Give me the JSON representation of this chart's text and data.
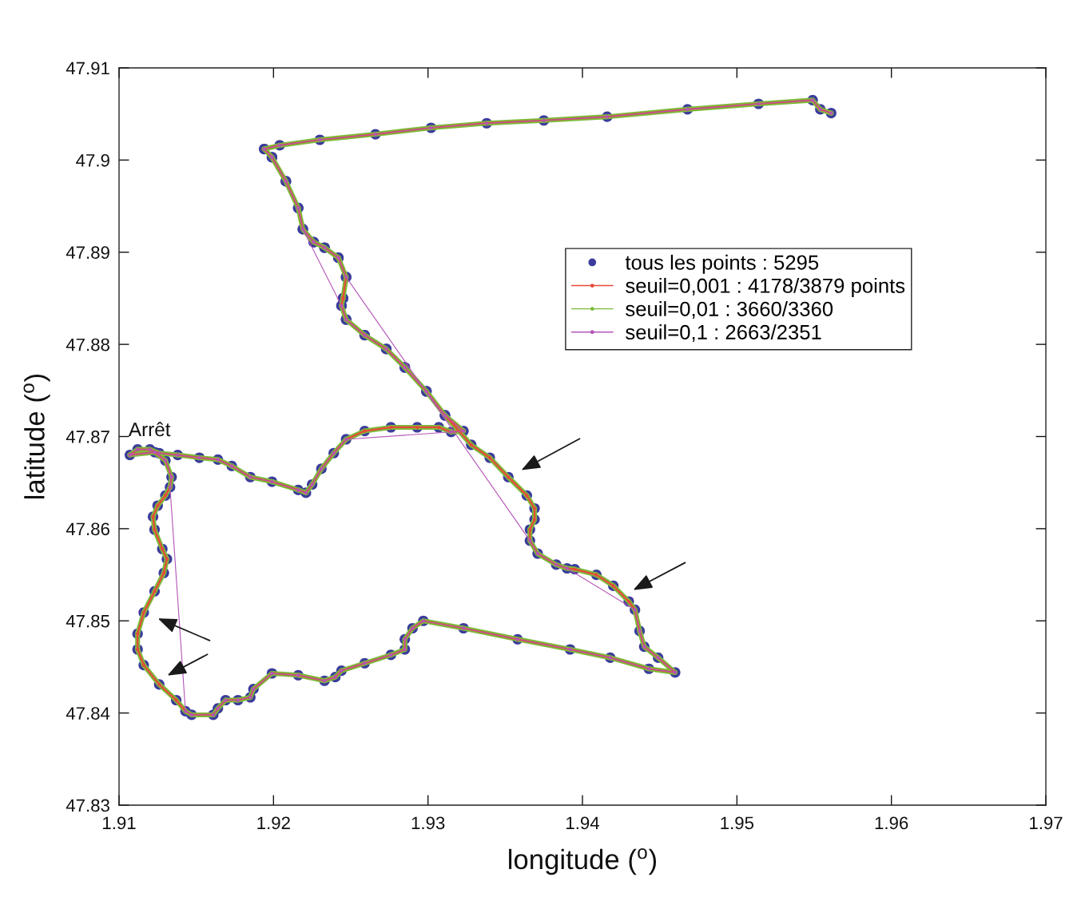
{
  "chart_data": {
    "type": "line",
    "xlabel": "longitude ($^{o}$)",
    "ylabel": "latitude ($^{o}$)",
    "xlim": [
      1.91,
      1.97
    ],
    "ylim": [
      47.83,
      47.91
    ],
    "xticks": [
      1.91,
      1.92,
      1.93,
      1.94,
      1.95,
      1.96,
      1.97
    ],
    "yticks": [
      47.83,
      47.84,
      47.85,
      47.86,
      47.87,
      47.88,
      47.89,
      47.9,
      47.91
    ],
    "marker": "circle",
    "line_style": "solid",
    "legend": "top right",
    "annotations": [
      {
        "text": "Arrêt",
        "x": 1.9109,
        "y": 47.8684
      }
    ],
    "x": [
      1.9561,
      1.9554,
      1.9549,
      1.9514,
      1.9468,
      1.9416,
      1.9375,
      1.9338,
      1.9302,
      1.9266,
      1.923,
      1.9204,
      1.9194,
      1.9199,
      1.9208,
      1.9216,
      1.9219,
      1.9226,
      1.9233,
      1.9242,
      1.9247,
      1.9245,
      1.9244,
      1.9247,
      1.9259,
      1.9273,
      1.9285,
      1.9299,
      1.9311,
      1.9323,
      1.9315,
      1.9307,
      1.9293,
      1.9276,
      1.9259,
      1.9247,
      1.9239,
      1.9231,
      1.9225,
      1.9221,
      1.9216,
      1.9199,
      1.9185,
      1.9173,
      1.9164,
      1.9152,
      1.9138,
      1.9126,
      1.912,
      1.9112,
      1.9107,
      1.9123,
      1.913,
      1.9134,
      1.9133,
      1.913,
      1.9125,
      1.9122,
      1.9123,
      1.9128,
      1.9131,
      1.9129,
      1.9123,
      1.9116,
      1.9112,
      1.9112,
      1.9116,
      1.9126,
      1.9137,
      1.9143,
      1.9147,
      1.9161,
      1.9164,
      1.9169,
      1.9177,
      1.9185,
      1.9187,
      1.9199,
      1.9216,
      1.9233,
      1.924,
      1.9244,
      1.9259,
      1.9276,
      1.9285,
      1.9285,
      1.929,
      1.9297,
      1.9323,
      1.9358,
      1.9392,
      1.9418,
      1.9443,
      1.946,
      1.9449,
      1.944,
      1.9437,
      1.9434,
      1.943,
      1.942,
      1.9409,
      1.9395,
      1.939,
      1.9383,
      1.9371,
      1.9366,
      1.9366,
      1.9369,
      1.9369,
      1.9364,
      1.9352,
      1.934,
      1.9328,
      1.9311,
      1.9299,
      1.9285,
      1.9273,
      1.9259,
      1.9247,
      1.9244,
      1.9245,
      1.9247,
      1.9242,
      1.9233,
      1.9226,
      1.9219,
      1.9216,
      1.9208,
      1.9199,
      1.9194
    ],
    "series": [
      {
        "name": "tous les points : 5295",
        "type": "scatter",
        "color": "#3c3c9c",
        "values": [
          47.9051,
          47.9055,
          47.9065,
          47.9061,
          47.9055,
          47.9047,
          47.9043,
          47.904,
          47.9035,
          47.9028,
          47.9022,
          47.9016,
          47.9012,
          47.9003,
          47.8977,
          47.8948,
          47.8925,
          47.8911,
          47.8905,
          47.8894,
          47.8873,
          47.885,
          47.8842,
          47.8827,
          47.881,
          47.8795,
          47.8775,
          47.8749,
          47.8723,
          47.8706,
          47.8705,
          47.871,
          47.871,
          47.871,
          47.8706,
          47.8697,
          47.8682,
          47.8665,
          47.8648,
          47.8639,
          47.8642,
          47.8651,
          47.8656,
          47.8668,
          47.8675,
          47.8677,
          47.868,
          47.8682,
          47.8686,
          47.8686,
          47.868,
          47.8683,
          47.8674,
          47.8656,
          47.8645,
          47.8636,
          47.8625,
          47.8613,
          47.8599,
          47.8578,
          47.8567,
          47.8552,
          47.8532,
          47.8509,
          47.8486,
          47.8469,
          47.8452,
          47.8431,
          47.8414,
          47.8402,
          47.8398,
          47.8398,
          47.8405,
          47.8414,
          47.8414,
          47.8417,
          47.8426,
          47.8443,
          47.8441,
          47.8435,
          47.8439,
          47.8446,
          47.8454,
          47.8463,
          47.8469,
          47.848,
          47.8492,
          47.85,
          47.8492,
          47.848,
          47.8469,
          47.846,
          47.8448,
          47.8444,
          47.846,
          47.8472,
          47.8489,
          47.8512,
          47.8521,
          47.8538,
          47.855,
          47.8556,
          47.8557,
          47.8561,
          47.8573,
          47.8587,
          47.8599,
          47.861,
          47.8622,
          47.8636,
          47.8656,
          47.8677,
          47.8691,
          47.8723,
          47.8749,
          47.8775,
          47.8795,
          47.881,
          47.8827,
          47.8842,
          47.885,
          47.8873,
          47.8894,
          47.8905,
          47.8911,
          47.8925,
          47.8948,
          47.8977,
          47.9003,
          47.9012
        ]
      },
      {
        "name": "seuil=0,001 : 4178/3879 points",
        "color": "#e84a3a",
        "values": [
          47.9051,
          47.9055,
          47.9065,
          47.9061,
          47.9055,
          47.9047,
          47.9043,
          47.904,
          47.9035,
          47.9028,
          47.9022,
          47.9016,
          47.9012,
          47.9003,
          47.8977,
          47.8948,
          47.8925,
          47.8911,
          47.8905,
          47.8894,
          47.8873,
          47.885,
          47.8842,
          47.8827,
          47.881,
          47.8795,
          47.8775,
          47.8749,
          47.8723,
          47.8706,
          47.8705,
          47.871,
          47.871,
          47.871,
          47.8706,
          47.8697,
          47.8682,
          47.8665,
          47.8648,
          47.8639,
          47.8642,
          47.8651,
          47.8656,
          47.8668,
          47.8675,
          47.8677,
          47.868,
          47.8682,
          47.8686,
          47.8686,
          47.868,
          47.8683,
          47.8674,
          47.8656,
          47.8645,
          47.8636,
          47.8625,
          47.8613,
          47.8599,
          47.8578,
          47.8567,
          47.8552,
          47.8532,
          47.8509,
          47.8486,
          47.8469,
          47.8452,
          47.8431,
          47.8414,
          47.8402,
          47.8398,
          47.8398,
          47.8405,
          47.8414,
          47.8414,
          47.8417,
          47.8426,
          47.8443,
          47.8441,
          47.8435,
          47.8439,
          47.8446,
          47.8454,
          47.8463,
          47.8469,
          47.848,
          47.8492,
          47.85,
          47.8492,
          47.848,
          47.8469,
          47.846,
          47.8448,
          47.8444,
          47.846,
          47.8472,
          47.8489,
          47.8512,
          47.8521,
          47.8538,
          47.855,
          47.8556,
          47.8557,
          47.8561,
          47.8573,
          47.8587,
          47.8599,
          47.861,
          47.8622,
          47.8636,
          47.8656,
          47.8677,
          47.8691,
          47.8723,
          47.8749,
          47.8775,
          47.8795,
          47.881,
          47.8827,
          47.8842,
          47.885,
          47.8873,
          47.8894,
          47.8905,
          47.8911,
          47.8925,
          47.8948,
          47.8977,
          47.9003,
          47.9012
        ]
      },
      {
        "name": "seuil=0,01 : 3660/3360",
        "color": "#7cba3a",
        "values": [
          47.9051,
          47.9055,
          47.9065,
          47.9061,
          47.9055,
          47.9047,
          47.9043,
          47.904,
          47.9035,
          47.9028,
          47.9022,
          47.9016,
          47.9012,
          47.9003,
          47.8977,
          47.8948,
          47.8925,
          47.8911,
          47.8905,
          47.8894,
          47.8873,
          47.885,
          47.8842,
          47.8827,
          47.881,
          47.8795,
          47.8775,
          47.8749,
          47.8723,
          47.8706,
          47.8705,
          47.871,
          47.871,
          47.871,
          47.8706,
          47.8697,
          47.8682,
          47.8665,
          47.8648,
          47.8639,
          47.8642,
          47.8651,
          47.8656,
          47.8668,
          47.8675,
          47.8677,
          47.868,
          47.8682,
          47.8686,
          47.8686,
          47.868,
          47.8683,
          47.8674,
          47.8656,
          47.8645,
          47.8636,
          47.8625,
          47.8613,
          47.8599,
          47.8578,
          47.8567,
          47.8552,
          47.8532,
          47.8509,
          47.8486,
          47.8469,
          47.8452,
          47.8431,
          47.8414,
          47.8402,
          47.8398,
          47.8398,
          47.8405,
          47.8414,
          47.8414,
          47.8417,
          47.8426,
          47.8443,
          47.8441,
          47.8435,
          47.8439,
          47.8446,
          47.8454,
          47.8463,
          47.8469,
          47.848,
          47.8492,
          47.85,
          47.8492,
          47.848,
          47.8469,
          47.846,
          47.8448,
          47.8444,
          47.846,
          47.8472,
          47.8489,
          47.8512,
          47.8521,
          47.8538,
          47.855,
          47.8556,
          47.8557,
          47.8561,
          47.8573,
          47.8587,
          47.8599,
          47.861,
          47.8622,
          47.8636,
          47.8656,
          47.8677,
          47.8691,
          47.8723,
          47.8749,
          47.8775,
          47.8795,
          47.881,
          47.8827,
          47.8842,
          47.885,
          47.8873,
          47.8894,
          47.8905,
          47.8911,
          47.8925,
          47.8948,
          47.8977,
          47.9003,
          47.9012
        ]
      },
      {
        "name": "seuil=0,1 : 2663/2351",
        "color": "#b455b8",
        "x": [
          1.9561,
          1.9554,
          1.9549,
          1.9514,
          1.9468,
          1.9416,
          1.9375,
          1.9338,
          1.9302,
          1.9266,
          1.923,
          1.9204,
          1.9194,
          1.9199,
          1.9208,
          1.9216,
          1.9219,
          1.9244,
          1.9247,
          1.9259,
          1.9273,
          1.9285,
          1.9299,
          1.9311,
          1.9323,
          1.9315,
          1.9247,
          1.9239,
          1.9231,
          1.9225,
          1.9221,
          1.9216,
          1.9199,
          1.9185,
          1.9173,
          1.9164,
          1.9152,
          1.9138,
          1.9126,
          1.912,
          1.9112,
          1.9107,
          1.9123,
          1.913,
          1.9134,
          1.9133,
          1.9143,
          1.9147,
          1.9161,
          1.9164,
          1.9169,
          1.9177,
          1.9185,
          1.9187,
          1.9199,
          1.9216,
          1.9233,
          1.924,
          1.9244,
          1.9259,
          1.9276,
          1.9285,
          1.9285,
          1.929,
          1.9297,
          1.9323,
          1.9358,
          1.9392,
          1.9418,
          1.9443,
          1.946,
          1.9449,
          1.944,
          1.9437,
          1.9434,
          1.939,
          1.9383,
          1.9371,
          1.9366,
          1.9247,
          1.9242,
          1.9233,
          1.9226,
          1.9219,
          1.9216,
          1.9208,
          1.9199,
          1.9194
        ],
        "values": [
          47.9051,
          47.9055,
          47.9065,
          47.9061,
          47.9055,
          47.9047,
          47.9043,
          47.904,
          47.9035,
          47.9028,
          47.9022,
          47.9016,
          47.9012,
          47.9003,
          47.8977,
          47.8948,
          47.8925,
          47.8842,
          47.8827,
          47.881,
          47.8795,
          47.8775,
          47.8749,
          47.8723,
          47.8706,
          47.8705,
          47.8697,
          47.8682,
          47.8665,
          47.8648,
          47.8639,
          47.8642,
          47.8651,
          47.8656,
          47.8668,
          47.8675,
          47.8677,
          47.868,
          47.8682,
          47.8686,
          47.8686,
          47.868,
          47.8683,
          47.8674,
          47.8656,
          47.8645,
          47.8402,
          47.8398,
          47.8398,
          47.8405,
          47.8414,
          47.8414,
          47.8417,
          47.8426,
          47.8443,
          47.8441,
          47.8435,
          47.8439,
          47.8446,
          47.8454,
          47.8463,
          47.8469,
          47.848,
          47.8492,
          47.85,
          47.8492,
          47.848,
          47.8469,
          47.846,
          47.8448,
          47.8444,
          47.846,
          47.8472,
          47.8489,
          47.8512,
          47.8557,
          47.8561,
          47.8573,
          47.8587,
          47.8873,
          47.8894,
          47.8905,
          47.8911,
          47.8925,
          47.8948,
          47.8977,
          47.9003,
          47.9012
        ]
      }
    ]
  }
}
